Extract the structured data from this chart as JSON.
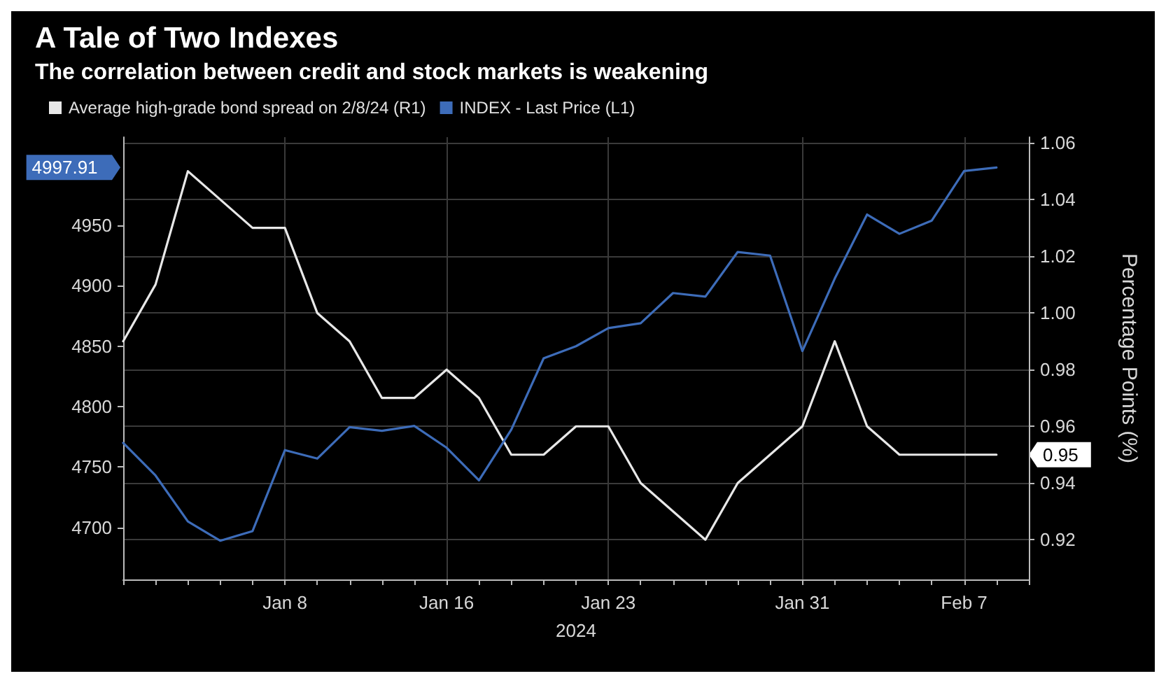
{
  "chart_data": {
    "type": "line",
    "title": "A Tale of Two Indexes",
    "subtitle": "The correlation between credit and stock markets is weakening",
    "xlabel": "2024",
    "y2label": "Percentage Points (%)",
    "categories": [
      null,
      null,
      null,
      null,
      null,
      "Jan 8",
      null,
      null,
      null,
      null,
      "Jan 16",
      null,
      null,
      null,
      null,
      "Jan 23",
      null,
      null,
      null,
      null,
      null,
      "Jan 31",
      null,
      null,
      null,
      null,
      "Feb 7",
      null,
      null
    ],
    "series": [
      {
        "name": "Average high-grade bond spread on 2/8/24 (R1)",
        "color": "#e8e8e8",
        "axis": "y2",
        "values": [
          0.99,
          1.01,
          1.05,
          1.04,
          1.03,
          1.03,
          1.0,
          0.99,
          0.97,
          0.97,
          0.98,
          0.97,
          0.95,
          0.95,
          0.96,
          0.96,
          0.94,
          0.93,
          0.92,
          0.94,
          0.95,
          0.96,
          0.99,
          0.96,
          0.95,
          0.95,
          0.95,
          0.95,
          null
        ]
      },
      {
        "name": "INDEX - Last Price (L1)",
        "color": "#3d6cb9",
        "axis": "y",
        "values": [
          4770,
          4743,
          4705,
          4689,
          4697,
          4764,
          4757,
          4783,
          4780,
          4784,
          4766,
          4739,
          4781,
          4840,
          4850,
          4865,
          4869,
          4894,
          4891,
          4928,
          4925,
          4846,
          4906,
          4959,
          4943,
          4954,
          4995,
          4997.91,
          null
        ]
      }
    ],
    "annotations": [
      "0.95",
      "4997.91"
    ],
    "ylim": [
      4657,
      5023
    ],
    "yticks": [
      4700,
      4750,
      4800,
      4850,
      4900,
      4950
    ],
    "y2lim": [
      0.906,
      1.062
    ],
    "y2ticks": [
      0.92,
      0.94,
      0.96,
      0.98,
      {
        "value": 1,
        "label": "1.00"
      },
      1.02,
      1.04,
      1.06
    ],
    "grid": true,
    "legend": "top left",
    "marker": "none",
    "line_style": "solid"
  }
}
